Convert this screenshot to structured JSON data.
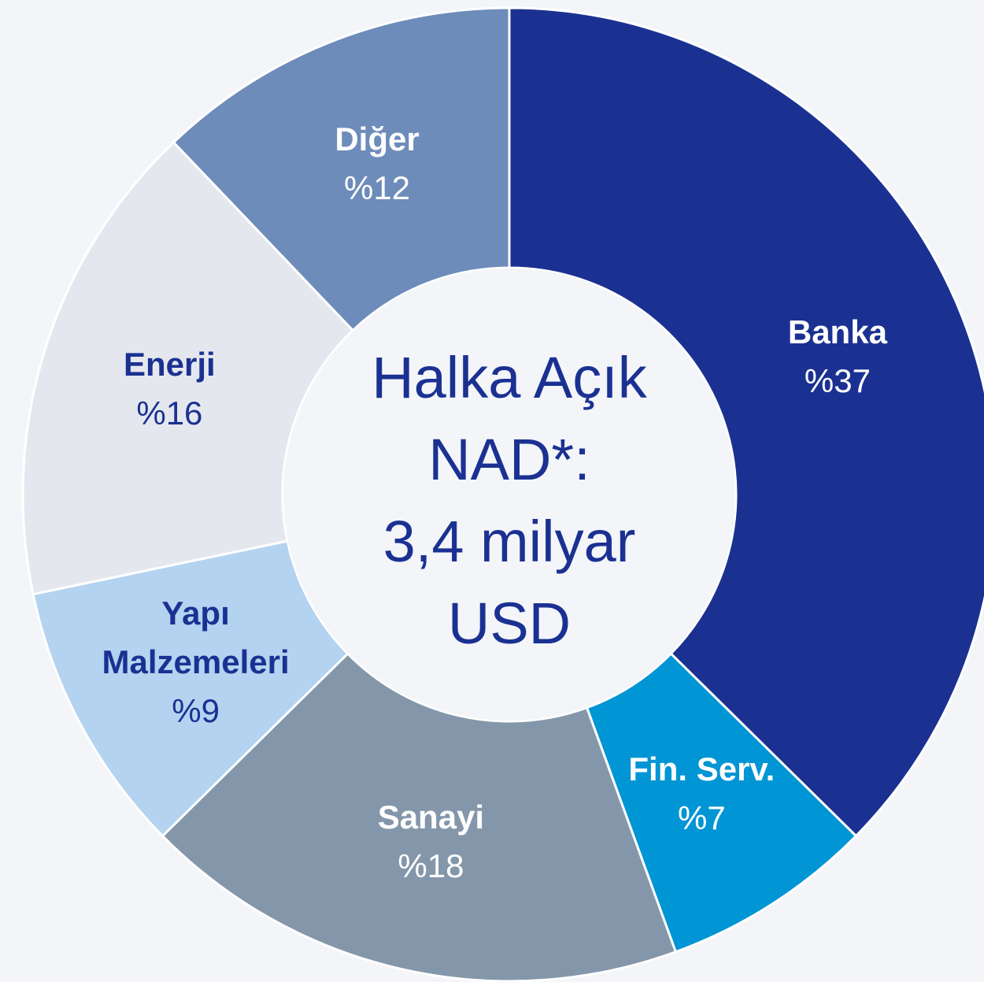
{
  "chart_data": {
    "type": "donut",
    "categories": [
      "Banka",
      "Fin. Serv.",
      "Sanayi",
      "Yapı Malzemeleri",
      "Enerji",
      "Diğer"
    ],
    "values": [
      37,
      7,
      18,
      9,
      16,
      12
    ],
    "value_labels": [
      "%37",
      "%7",
      "%18",
      "%9",
      "%16",
      "%12"
    ],
    "colors": [
      "#1b3192",
      "#0095d4",
      "#8497aa",
      "#b3d3f0",
      "#e4e8ee",
      "#6d8cba"
    ],
    "label_colors": [
      "#ffffff",
      "#ffffff",
      "#ffffff",
      "#1b3192",
      "#1b3192",
      "#ffffff"
    ],
    "center_text": [
      "Halka Açık",
      "NAD*:",
      "3,4 milyar",
      "USD"
    ]
  }
}
